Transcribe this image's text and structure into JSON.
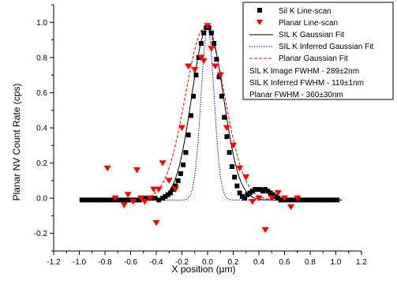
{
  "chart_data": {
    "type": "scatter",
    "xlabel": "X position (µm)",
    "ylabel": "Planar NV Count Rate (cps)",
    "xlim": [
      -1.2,
      1.2
    ],
    "ylim": [
      -0.3,
      1.1
    ],
    "x_ticks": [
      -1.2,
      -1.0,
      -0.8,
      -0.6,
      -0.4,
      -0.2,
      0.0,
      0.2,
      0.4,
      0.6,
      0.8,
      1.0,
      1.2
    ],
    "x_tick_labels": [
      "-1.2",
      "-1.0",
      "-0.8",
      "-0.6",
      "-0.4",
      "-0.2",
      "0.0",
      "0.2",
      "0.4",
      "0.6",
      "0.8",
      "1.0",
      "1.2"
    ],
    "y_ticks": [
      -0.2,
      0.0,
      0.2,
      0.4,
      0.6,
      0.8,
      1.0
    ],
    "y_tick_labels": [
      "-0.2",
      "0.0",
      "0.2",
      "0.4",
      "0.6",
      "0.8",
      "1.0"
    ],
    "grid": false,
    "legend_position": "top-right",
    "series": [
      {
        "name": "Sil K Line-scan",
        "kind": "scatter",
        "marker": "square",
        "color": "#000000",
        "x": [
          -0.98,
          -0.95,
          -0.92,
          -0.89,
          -0.86,
          -0.83,
          -0.8,
          -0.77,
          -0.74,
          -0.71,
          -0.68,
          -0.65,
          -0.62,
          -0.59,
          -0.56,
          -0.53,
          -0.5,
          -0.47,
          -0.44,
          -0.41,
          -0.38,
          -0.35,
          -0.33,
          -0.31,
          -0.29,
          -0.27,
          -0.25,
          -0.23,
          -0.21,
          -0.19,
          -0.17,
          -0.15,
          -0.13,
          -0.11,
          -0.09,
          -0.07,
          -0.05,
          -0.03,
          -0.01,
          0.01,
          0.03,
          0.05,
          0.07,
          0.09,
          0.11,
          0.13,
          0.15,
          0.17,
          0.19,
          0.21,
          0.23,
          0.25,
          0.27,
          0.29,
          0.31,
          0.33,
          0.35,
          0.37,
          0.39,
          0.41,
          0.43,
          0.45,
          0.47,
          0.49,
          0.51,
          0.53,
          0.55,
          0.57,
          0.59,
          0.62,
          0.65,
          0.68,
          0.71,
          0.74,
          0.77,
          0.8,
          0.83,
          0.86,
          0.89,
          0.92,
          0.95,
          0.98,
          1.01
        ],
        "y": [
          -0.01,
          -0.01,
          -0.01,
          -0.01,
          -0.01,
          -0.01,
          -0.01,
          -0.01,
          -0.01,
          -0.01,
          -0.01,
          -0.01,
          -0.01,
          -0.01,
          -0.01,
          -0.01,
          0.0,
          0.0,
          0.0,
          0.0,
          -0.01,
          0.0,
          0.01,
          0.02,
          0.03,
          0.05,
          0.07,
          0.1,
          0.14,
          0.19,
          0.26,
          0.36,
          0.47,
          0.58,
          0.7,
          0.8,
          0.88,
          0.94,
          0.97,
          0.97,
          0.94,
          0.88,
          0.79,
          0.69,
          0.58,
          0.46,
          0.35,
          0.26,
          0.18,
          0.12,
          0.07,
          0.03,
          0.01,
          0.0,
          0.02,
          0.03,
          0.04,
          0.05,
          0.05,
          0.05,
          0.04,
          0.05,
          0.04,
          0.03,
          0.02,
          0.01,
          0.0,
          -0.01,
          -0.01,
          -0.01,
          -0.01,
          -0.01,
          -0.01,
          -0.01,
          -0.01,
          -0.01,
          -0.01,
          -0.01,
          -0.01,
          -0.01,
          -0.01,
          -0.01,
          -0.01
        ]
      },
      {
        "name": "Planar Line-scan",
        "kind": "scatter",
        "marker": "triangle-down",
        "color": "#ff0000",
        "x": [
          -0.78,
          -0.72,
          -0.65,
          -0.62,
          -0.58,
          -0.55,
          -0.52,
          -0.49,
          -0.45,
          -0.42,
          -0.4,
          -0.38,
          -0.35,
          -0.3,
          -0.25,
          -0.2,
          -0.15,
          -0.1,
          -0.05,
          -0.03,
          0.0,
          0.03,
          0.06,
          0.1,
          0.15,
          0.2,
          0.25,
          0.3,
          0.35,
          0.4,
          0.45,
          0.5,
          0.55,
          0.6,
          0.65,
          0.7
        ],
        "y": [
          0.17,
          0.0,
          -0.04,
          0.02,
          -0.02,
          0.16,
          0.0,
          -0.02,
          0.0,
          0.05,
          -0.14,
          0.05,
          0.2,
          0.1,
          0.05,
          0.4,
          0.75,
          0.73,
          0.8,
          0.78,
          0.98,
          0.85,
          0.75,
          0.7,
          0.4,
          0.3,
          0.17,
          0.12,
          -0.02,
          0.0,
          -0.18,
          0.0,
          0.03,
          0.0,
          -0.05,
          0.0
        ]
      },
      {
        "name": "SIL K Gaussian Fit",
        "kind": "gaussian",
        "amplitude": 0.98,
        "center": 0.0,
        "fwhm": 0.289,
        "offset": -0.01,
        "color": "#000000",
        "dash": "solid"
      },
      {
        "name": "SIL K Inferred Gaussian Fit",
        "kind": "gaussian",
        "amplitude": 0.98,
        "center": 0.0,
        "fwhm": 0.119,
        "offset": -0.01,
        "color": "#0000ff",
        "dash": "dot"
      },
      {
        "name": "Planar Gaussian Fit",
        "kind": "gaussian",
        "amplitude": 0.98,
        "center": -0.02,
        "fwhm": 0.36,
        "offset": -0.01,
        "color": "#ff0000",
        "dash": "dash"
      }
    ],
    "legend_notes": [
      "SIL K Image FWHM - 289±2nm",
      "SIL K Inferred FWHM - 119±1nm",
      "Planar FWHM - 360±30nm"
    ]
  }
}
